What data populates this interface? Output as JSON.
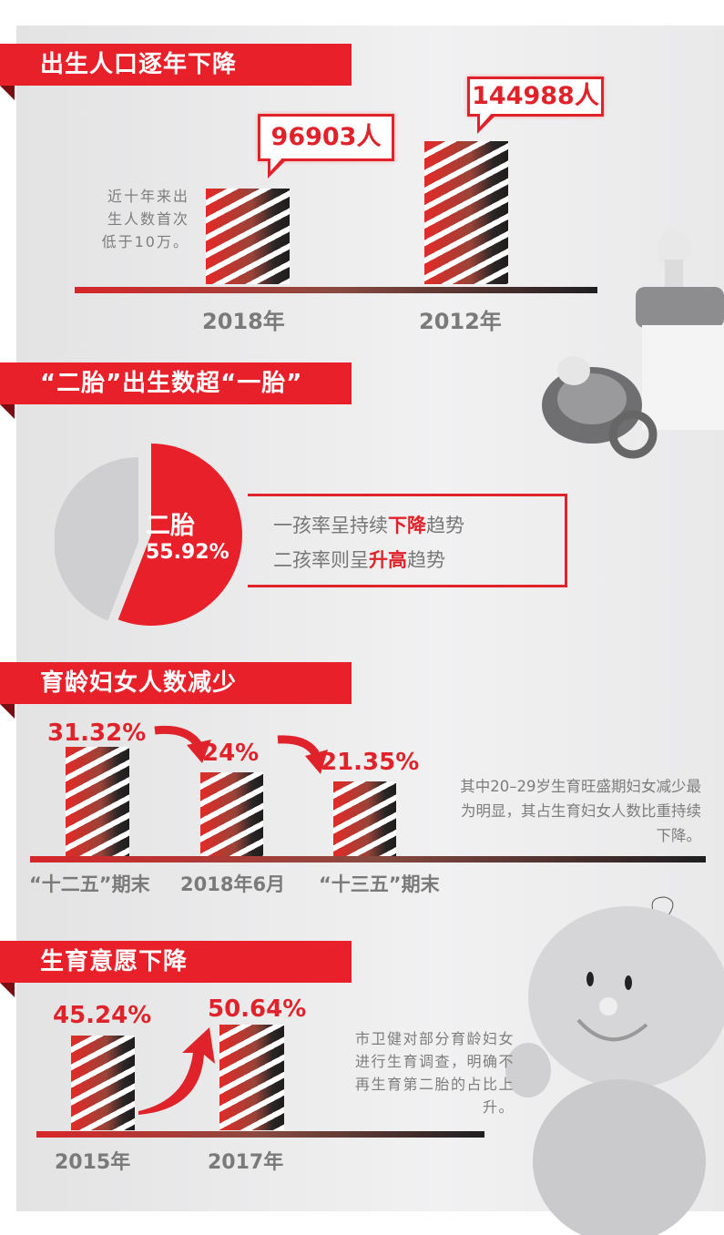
{
  "colors": {
    "accent": "#e8202a",
    "text_gray": "#7a7a7a",
    "pie_other": "#cfcfd1"
  },
  "chart_data": [
    {
      "type": "bar",
      "title": "出生人口逐年下降",
      "categories": [
        "2018年",
        "2012年"
      ],
      "values": [
        96903,
        144988
      ],
      "data_labels": [
        "96903人",
        "144988人"
      ],
      "annotation": "近十年来出生人数首次低于10万。"
    },
    {
      "type": "pie",
      "title": "“二胎”出生数超“一胎”",
      "slices": [
        {
          "label": "二胎",
          "value": 55.92,
          "display": "55.92%",
          "color": "#e8202a"
        },
        {
          "label": "",
          "value": 44.08,
          "color": "#cfcfd1"
        }
      ],
      "annotation": {
        "line1": [
          "一孩率呈持续",
          "下降",
          "趋势"
        ],
        "line2": [
          "二孩率则呈",
          "升高",
          "趋势"
        ]
      }
    },
    {
      "type": "bar",
      "title": "育龄妇女人数减少",
      "categories": [
        "“十二五”期末",
        "2018年6月",
        "“十三五”期末"
      ],
      "values": [
        31.32,
        24,
        21.35
      ],
      "data_labels": [
        "31.32%",
        "24%",
        "21.35%"
      ],
      "annotation": "其中20–29岁生育旺盛期妇女减少最为明显，其占生育妇女人数比重持续下降。"
    },
    {
      "type": "bar",
      "title": "生育意愿下降",
      "categories": [
        "2015年",
        "2017年"
      ],
      "values": [
        45.24,
        50.64
      ],
      "data_labels": [
        "45.24%",
        "50.64%"
      ],
      "annotation": "市卫健对部分育龄妇女进行生育调查，明确不再生育第二胎的占比上升。"
    }
  ]
}
